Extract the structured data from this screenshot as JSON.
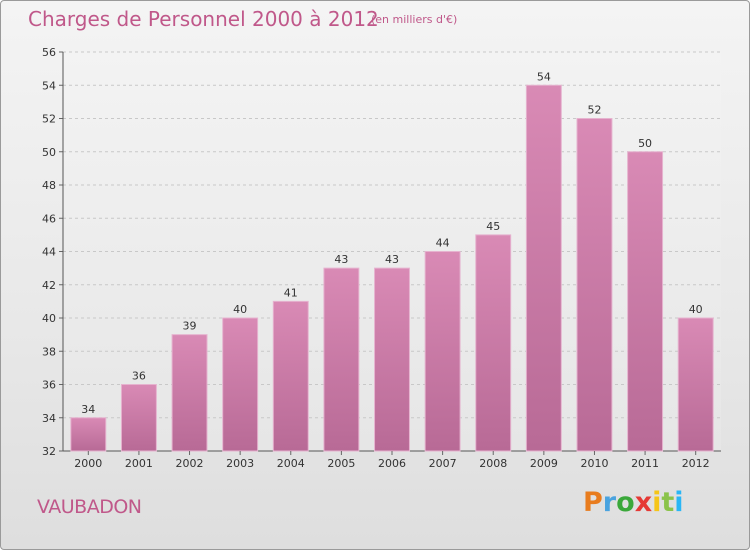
{
  "chart_data": {
    "type": "bar",
    "title": "Charges de Personnel 2000 à 2012",
    "subtitle": "(en milliers d'€)",
    "categories": [
      "2000",
      "2001",
      "2002",
      "2003",
      "2004",
      "2005",
      "2006",
      "2007",
      "2008",
      "2009",
      "2010",
      "2011",
      "2012"
    ],
    "values": [
      34,
      36,
      39,
      40,
      41,
      43,
      43,
      44,
      45,
      54,
      52,
      50,
      40
    ],
    "ylim": [
      32,
      56
    ],
    "yticks": [
      32,
      34,
      36,
      38,
      40,
      42,
      44,
      46,
      48,
      50,
      52,
      54,
      56
    ],
    "grid": true,
    "bar_color": "#d98ab5",
    "bar_color_dark": "#b86a96"
  },
  "footer": {
    "town": "VAUBADON",
    "logo": "Proxiti",
    "logo_colors": [
      "#e87c1e",
      "#4aa3df",
      "#3aa83a",
      "#e53935",
      "#f5c518",
      "#8bc34a",
      "#29b6f6"
    ]
  },
  "colors": {
    "accent": "#c0588a"
  }
}
